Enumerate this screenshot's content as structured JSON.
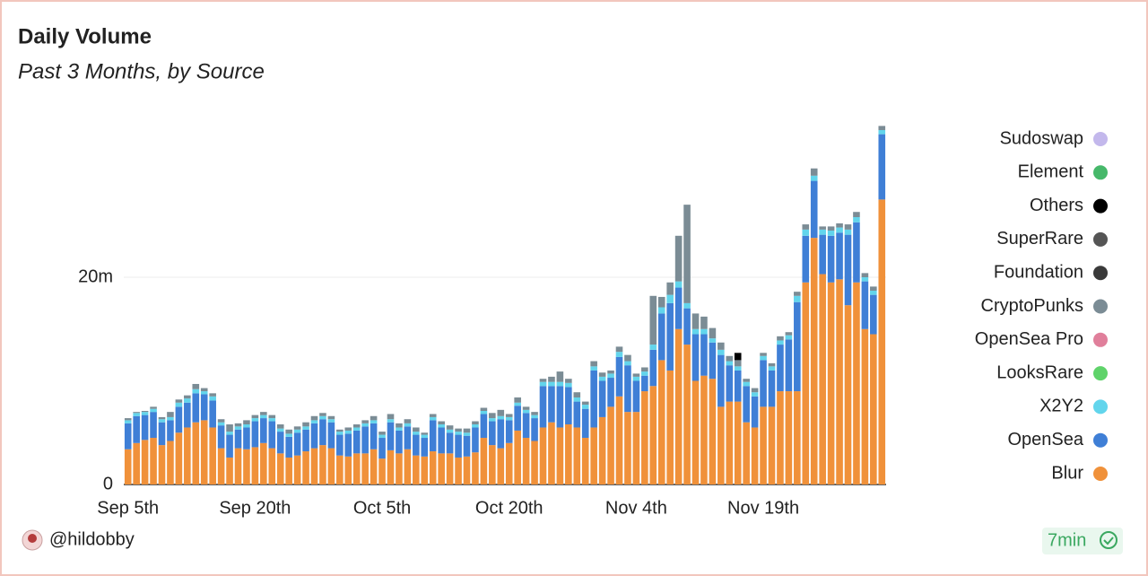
{
  "chart_data": {
    "type": "stacked_bar",
    "title": "Daily Volume",
    "subtitle": "Past 3 Months, by Source",
    "categories": [
      "Sep 5th",
      null,
      null,
      null,
      null,
      null,
      null,
      null,
      null,
      null,
      null,
      null,
      null,
      null,
      null,
      "Sep 20th",
      null,
      null,
      null,
      null,
      null,
      null,
      null,
      null,
      null,
      null,
      null,
      null,
      null,
      null,
      "Oct 5th",
      null,
      null,
      null,
      null,
      null,
      null,
      null,
      null,
      null,
      null,
      null,
      null,
      null,
      null,
      "Oct 20th",
      null,
      null,
      null,
      null,
      null,
      null,
      null,
      null,
      null,
      null,
      null,
      null,
      null,
      null,
      "Nov 4th",
      null,
      null,
      null,
      null,
      null,
      null,
      null,
      null,
      null,
      null,
      null,
      null,
      null,
      null,
      "Nov 19th",
      null,
      null,
      null,
      null,
      null,
      null,
      null,
      null,
      null,
      null,
      null,
      null,
      null,
      null
    ],
    "ylim": [
      0,
      36
    ],
    "yticks": [
      0,
      {
        "value": 20,
        "label": "20m"
      }
    ],
    "grid": true,
    "series": [
      {
        "name": "Blur",
        "color": "#f0913a",
        "values": [
          3.4,
          4.0,
          4.3,
          4.5,
          3.8,
          4.2,
          5.0,
          5.5,
          6.0,
          6.2,
          5.5,
          3.5,
          2.6,
          3.5,
          3.4,
          3.6,
          4.0,
          3.5,
          3.0,
          2.6,
          2.8,
          3.2,
          3.5,
          3.8,
          3.5,
          2.8,
          2.7,
          3.0,
          3.0,
          3.4,
          2.5,
          3.3,
          3.0,
          3.4,
          2.8,
          2.7,
          3.2,
          3.0,
          3.0,
          2.6,
          2.7,
          3.1,
          4.5,
          3.8,
          3.5,
          4.0,
          5.2,
          4.5,
          4.2,
          5.5,
          6.0,
          5.5,
          5.8,
          5.5,
          4.5,
          5.5,
          6.5,
          7.5,
          8.5,
          7.0,
          7.0,
          9.0,
          9.5,
          12.0,
          11.0,
          15.0,
          13.5,
          10.0,
          10.5,
          10.2,
          7.5,
          8.0,
          8.0,
          6.0,
          5.5,
          7.5,
          7.5,
          9.0,
          9.0,
          9.0,
          19.5,
          23.8,
          20.3,
          19.5,
          19.8,
          17.3,
          19.5,
          15.0,
          14.5,
          27.5
        ]
      },
      {
        "name": "OpenSea",
        "color": "#3f7fd6",
        "values": [
          2.5,
          2.6,
          2.4,
          2.5,
          2.2,
          2.0,
          2.5,
          2.4,
          2.8,
          2.5,
          2.6,
          2.2,
          2.2,
          1.8,
          2.1,
          2.5,
          2.4,
          2.6,
          2.1,
          2.0,
          2.2,
          2.1,
          2.4,
          2.5,
          2.5,
          2.0,
          2.2,
          2.2,
          2.6,
          2.5,
          2.0,
          2.7,
          2.2,
          2.2,
          2.0,
          1.8,
          3.0,
          2.5,
          2.0,
          2.2,
          2.0,
          2.4,
          2.3,
          2.3,
          2.8,
          2.2,
          2.4,
          2.4,
          2.2,
          4.0,
          3.5,
          4.0,
          3.6,
          2.5,
          2.8,
          5.5,
          3.5,
          2.8,
          3.8,
          4.5,
          3.0,
          1.5,
          3.5,
          4.5,
          6.5,
          4.0,
          3.5,
          4.5,
          4.0,
          3.5,
          5.0,
          3.5,
          3.0,
          3.5,
          3.0,
          4.5,
          3.5,
          4.5,
          5.0,
          8.6,
          4.5,
          5.5,
          3.8,
          4.5,
          4.5,
          6.8,
          5.8,
          4.6,
          3.8,
          6.3
        ]
      },
      {
        "name": "X2Y2",
        "color": "#62d5ec",
        "values": [
          0.3,
          0.3,
          0.3,
          0.3,
          0.3,
          0.3,
          0.4,
          0.4,
          0.4,
          0.3,
          0.4,
          0.3,
          0.3,
          0.3,
          0.3,
          0.3,
          0.3,
          0.3,
          0.3,
          0.3,
          0.3,
          0.3,
          0.3,
          0.3,
          0.3,
          0.3,
          0.3,
          0.3,
          0.3,
          0.3,
          0.3,
          0.3,
          0.3,
          0.3,
          0.3,
          0.3,
          0.3,
          0.3,
          0.3,
          0.3,
          0.3,
          0.3,
          0.3,
          0.3,
          0.3,
          0.3,
          0.3,
          0.3,
          0.3,
          0.4,
          0.4,
          0.4,
          0.4,
          0.4,
          0.4,
          0.4,
          0.4,
          0.4,
          0.5,
          0.4,
          0.4,
          0.4,
          0.5,
          0.6,
          0.8,
          0.6,
          0.5,
          0.5,
          0.5,
          0.4,
          0.5,
          0.4,
          0.4,
          0.4,
          0.4,
          0.4,
          0.4,
          0.4,
          0.4,
          0.6,
          0.6,
          0.5,
          0.5,
          0.5,
          0.5,
          0.5,
          0.5,
          0.4,
          0.4,
          0.4
        ]
      },
      {
        "name": "LooksRare",
        "color": "#5fd36a",
        "values": [
          0,
          0,
          0,
          0,
          0,
          0,
          0,
          0,
          0,
          0,
          0,
          0,
          0,
          0,
          0,
          0,
          0,
          0,
          0,
          0,
          0,
          0,
          0,
          0,
          0,
          0,
          0,
          0,
          0,
          0,
          0,
          0,
          0,
          0,
          0,
          0,
          0,
          0,
          0,
          0,
          0,
          0,
          0,
          0,
          0,
          0,
          0,
          0,
          0,
          0,
          0,
          0,
          0,
          0,
          0,
          0,
          0,
          0,
          0,
          0,
          0,
          0,
          0,
          0,
          0,
          0,
          0,
          0,
          0,
          0,
          0,
          0,
          0,
          0,
          0,
          0,
          0,
          0,
          0,
          0,
          0,
          0,
          0,
          0,
          0,
          0,
          0,
          0,
          0,
          0
        ]
      },
      {
        "name": "OpenSea Pro",
        "color": "#e07f9b",
        "values": [
          0,
          0,
          0,
          0,
          0,
          0,
          0,
          0,
          0,
          0,
          0,
          0,
          0,
          0,
          0,
          0,
          0,
          0,
          0,
          0,
          0,
          0,
          0,
          0,
          0,
          0,
          0,
          0,
          0,
          0,
          0,
          0,
          0,
          0,
          0,
          0,
          0,
          0,
          0,
          0,
          0,
          0,
          0,
          0,
          0,
          0,
          0,
          0,
          0,
          0,
          0,
          0,
          0,
          0,
          0,
          0,
          0,
          0,
          0,
          0,
          0,
          0,
          0,
          0,
          0,
          0,
          0,
          0,
          0,
          0,
          0,
          0,
          0,
          0,
          0,
          0,
          0,
          0,
          0,
          0,
          0,
          0,
          0,
          0,
          0,
          0,
          0,
          0,
          0,
          0
        ]
      },
      {
        "name": "CryptoPunks",
        "color": "#7b8c95",
        "values": [
          0.2,
          0.1,
          0.1,
          0.2,
          0.2,
          0.5,
          0.3,
          0.3,
          0.5,
          0.3,
          0.3,
          0.3,
          0.7,
          0.3,
          0.4,
          0.3,
          0.3,
          0.3,
          0.4,
          0.4,
          0.3,
          0.4,
          0.4,
          0.3,
          0.3,
          0.2,
          0.3,
          0.3,
          0.3,
          0.4,
          0.3,
          0.5,
          0.4,
          0.4,
          0.4,
          0.2,
          0.3,
          0.3,
          0.4,
          0.3,
          0.4,
          0.3,
          0.3,
          0.5,
          0.6,
          0.3,
          0.5,
          0.3,
          0.3,
          0.3,
          0.5,
          1.0,
          0.4,
          0.5,
          0.3,
          0.5,
          0.4,
          0.3,
          0.5,
          0.6,
          0.3,
          0.4,
          4.7,
          1.0,
          1.2,
          4.4,
          9.5,
          1.5,
          1.2,
          1.0,
          0.7,
          0.5,
          0.6,
          0.3,
          0.4,
          0.3,
          0.3,
          0.4,
          0.3,
          0.4,
          0.5,
          0.7,
          0.3,
          0.4,
          0.4,
          0.5,
          0.5,
          0.4,
          0.4,
          0.4
        ]
      },
      {
        "name": "Foundation",
        "color": "#3a3a3a",
        "values": [
          0,
          0,
          0,
          0,
          0,
          0,
          0,
          0,
          0,
          0,
          0,
          0,
          0,
          0,
          0,
          0,
          0,
          0,
          0,
          0,
          0,
          0,
          0,
          0,
          0,
          0,
          0,
          0,
          0,
          0,
          0,
          0,
          0,
          0,
          0,
          0,
          0,
          0,
          0,
          0,
          0,
          0,
          0,
          0,
          0,
          0,
          0,
          0,
          0,
          0,
          0,
          0,
          0,
          0,
          0,
          0,
          0,
          0,
          0,
          0,
          0,
          0,
          0,
          0,
          0,
          0,
          0,
          0,
          0,
          0,
          0,
          0,
          0,
          0,
          0,
          0,
          0,
          0,
          0,
          0,
          0,
          0,
          0,
          0,
          0,
          0,
          0,
          0,
          0,
          0
        ]
      },
      {
        "name": "SuperRare",
        "color": "#555555",
        "values": [
          0,
          0,
          0,
          0,
          0,
          0,
          0,
          0,
          0,
          0,
          0,
          0,
          0,
          0,
          0,
          0,
          0,
          0,
          0,
          0,
          0,
          0,
          0,
          0,
          0,
          0,
          0,
          0,
          0,
          0,
          0,
          0,
          0,
          0,
          0,
          0,
          0,
          0,
          0,
          0,
          0,
          0,
          0,
          0,
          0,
          0,
          0,
          0,
          0,
          0,
          0,
          0,
          0,
          0,
          0,
          0,
          0,
          0,
          0,
          0,
          0,
          0,
          0,
          0,
          0,
          0,
          0,
          0,
          0,
          0,
          0,
          0,
          0,
          0,
          0,
          0,
          0,
          0,
          0,
          0,
          0,
          0,
          0,
          0,
          0,
          0,
          0,
          0,
          0,
          0
        ]
      },
      {
        "name": "Others",
        "color": "#000000",
        "values": [
          0,
          0,
          0,
          0,
          0,
          0,
          0,
          0,
          0,
          0,
          0,
          0,
          0,
          0,
          0,
          0,
          0,
          0,
          0,
          0,
          0,
          0,
          0,
          0,
          0,
          0,
          0,
          0,
          0,
          0,
          0,
          0,
          0,
          0,
          0,
          0,
          0,
          0,
          0,
          0,
          0,
          0,
          0,
          0,
          0,
          0,
          0,
          0,
          0,
          0,
          0,
          0,
          0,
          0,
          0,
          0,
          0,
          0,
          0,
          0,
          0,
          0,
          0,
          0,
          0,
          0,
          0,
          0,
          0,
          0,
          0,
          0,
          0.7,
          0,
          0,
          0,
          0,
          0,
          0,
          0,
          0,
          0,
          0,
          0,
          0,
          0,
          0,
          0,
          0,
          0
        ]
      },
      {
        "name": "Element",
        "color": "#46b86a",
        "values": [
          0,
          0,
          0,
          0,
          0,
          0,
          0,
          0,
          0,
          0,
          0,
          0,
          0,
          0,
          0,
          0,
          0,
          0,
          0,
          0,
          0,
          0,
          0,
          0,
          0,
          0,
          0,
          0,
          0,
          0,
          0,
          0,
          0,
          0,
          0,
          0,
          0,
          0,
          0,
          0,
          0,
          0,
          0,
          0,
          0,
          0,
          0,
          0,
          0,
          0,
          0,
          0,
          0,
          0,
          0,
          0,
          0,
          0,
          0,
          0,
          0,
          0,
          0,
          0,
          0,
          0,
          0,
          0,
          0,
          0,
          0,
          0,
          0,
          0,
          0,
          0,
          0,
          0,
          0,
          0,
          0,
          0,
          0,
          0,
          0,
          0,
          0,
          0,
          0,
          0
        ]
      },
      {
        "name": "Sudoswap",
        "color": "#c3b8ec",
        "values": [
          0,
          0,
          0,
          0,
          0,
          0,
          0,
          0,
          0,
          0,
          0,
          0,
          0,
          0,
          0,
          0,
          0,
          0,
          0,
          0,
          0,
          0,
          0,
          0,
          0,
          0,
          0,
          0,
          0,
          0,
          0,
          0,
          0,
          0,
          0,
          0,
          0,
          0,
          0,
          0,
          0,
          0,
          0,
          0,
          0,
          0,
          0,
          0,
          0,
          0,
          0,
          0,
          0,
          0,
          0,
          0,
          0,
          0,
          0,
          0,
          0,
          0,
          0,
          0,
          0,
          0,
          0,
          0,
          0,
          0,
          0,
          0,
          0,
          0,
          0,
          0,
          0,
          0,
          0,
          0,
          0,
          0,
          0,
          0,
          0,
          0,
          0,
          0,
          0,
          0
        ]
      }
    ]
  },
  "footer": {
    "author": "@hildobby",
    "freshness": "7min"
  }
}
